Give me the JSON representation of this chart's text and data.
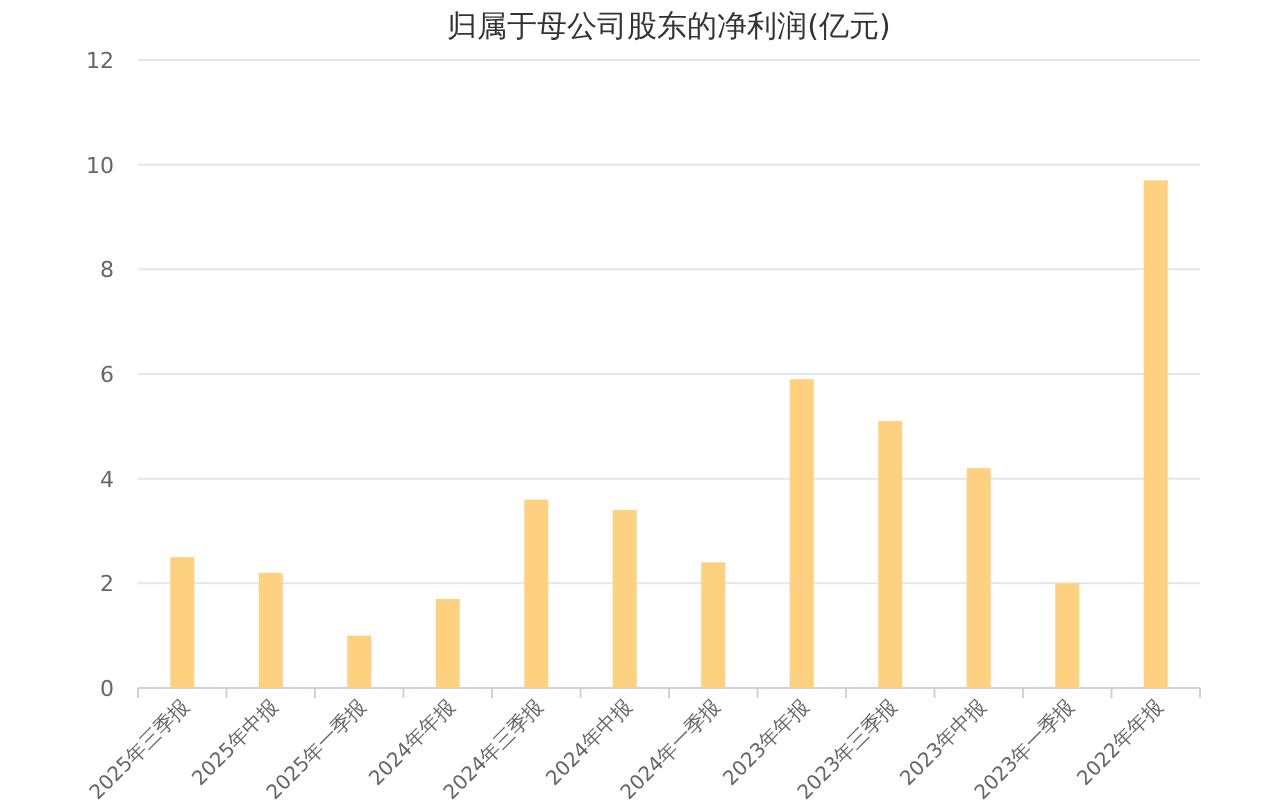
{
  "chart_data": {
    "type": "bar",
    "title": "归属于母公司股东的净利润(亿元)",
    "categories": [
      "2025年三季报",
      "2025年中报",
      "2025年一季报",
      "2024年年报",
      "2024年三季报",
      "2024年中报",
      "2024年一季报",
      "2023年年报",
      "2023年三季报",
      "2023年中报",
      "2023年一季报",
      "2022年年报"
    ],
    "values": [
      2.5,
      2.2,
      1.0,
      1.7,
      3.6,
      3.4,
      2.4,
      5.9,
      5.1,
      4.2,
      2.0,
      9.7
    ],
    "color": "#fdd17f",
    "ylim": [
      0,
      12
    ],
    "yticks": [
      0,
      2,
      4,
      6,
      8,
      10,
      12
    ],
    "grid": "y"
  }
}
